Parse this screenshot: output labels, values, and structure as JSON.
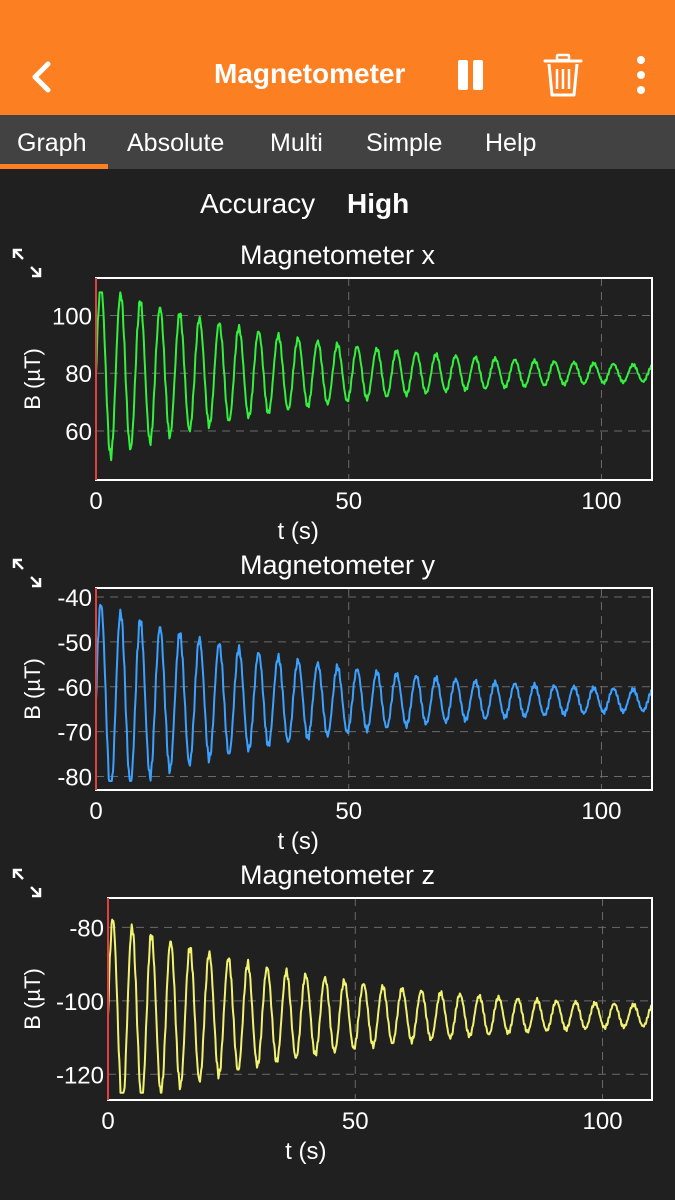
{
  "header": {
    "title": "Magnetometer",
    "back_icon": "chevron-left-icon",
    "pause_icon": "pause-icon",
    "delete_icon": "trash-icon",
    "menu_icon": "more-vertical-icon",
    "color": "#fc7f22"
  },
  "tabs": [
    {
      "label": "Graph",
      "active": true
    },
    {
      "label": "Absolute",
      "active": false
    },
    {
      "label": "Multi",
      "active": false
    },
    {
      "label": "Simple",
      "active": false
    },
    {
      "label": "Help",
      "active": false
    }
  ],
  "status": {
    "accuracy_label": "Accuracy",
    "accuracy_value": "High"
  },
  "graphs": [
    {
      "title": "Magnetometer x",
      "xlabel": "t (s)",
      "ylabel": "B (µT)",
      "color": "#33f03c"
    },
    {
      "title": "Magnetometer y",
      "xlabel": "t (s)",
      "ylabel": "B (µT)",
      "color": "#3ca0ff"
    },
    {
      "title": "Magnetometer z",
      "xlabel": "t (s)",
      "ylabel": "B (µT)",
      "color": "#f0f270"
    }
  ],
  "chart_data": [
    {
      "type": "line",
      "title": "Magnetometer x",
      "xlabel": "t (s)",
      "ylabel": "B (µT)",
      "xlim": [
        0,
        110
      ],
      "ylim": [
        43,
        113
      ],
      "xticks": [
        0,
        50,
        100
      ],
      "yticks": [
        60,
        80,
        100
      ],
      "grid": true,
      "signal": {
        "kind": "damped oscillation",
        "baseline": 80,
        "initial_amplitude": 30,
        "decay_to_amplitude": 2,
        "period_s": 3.9,
        "peak_max": 108,
        "trough_min": 46
      },
      "series": [
        {
          "name": "Magnetometer x",
          "color": "#33f03c"
        }
      ]
    },
    {
      "type": "line",
      "title": "Magnetometer y",
      "xlabel": "t (s)",
      "ylabel": "B (µT)",
      "xlim": [
        0,
        110
      ],
      "ylim": [
        -83,
        -38
      ],
      "xticks": [
        0,
        50,
        100
      ],
      "yticks": [
        -80,
        -70,
        -60,
        -50,
        -40
      ],
      "grid": true,
      "signal": {
        "kind": "damped oscillation",
        "baseline": -63,
        "initial_amplitude": 21,
        "decay_to_amplitude": 1.5,
        "period_s": 3.9,
        "peak_max": -40,
        "trough_min": -81
      },
      "series": [
        {
          "name": "Magnetometer y",
          "color": "#3ca0ff"
        }
      ]
    },
    {
      "type": "line",
      "title": "Magnetometer z",
      "xlabel": "t (s)",
      "ylabel": "B (µT)",
      "xlim": [
        0,
        110
      ],
      "ylim": [
        -127,
        -72
      ],
      "xticks": [
        0,
        50,
        100
      ],
      "yticks": [
        -120,
        -100,
        -80
      ],
      "grid": true,
      "signal": {
        "kind": "damped oscillation",
        "baseline": -104,
        "initial_amplitude": 26,
        "decay_to_amplitude": 2,
        "period_s": 3.9,
        "peak_max": -75,
        "trough_min": -125
      },
      "series": [
        {
          "name": "Magnetometer z",
          "color": "#f0f270"
        }
      ]
    }
  ]
}
